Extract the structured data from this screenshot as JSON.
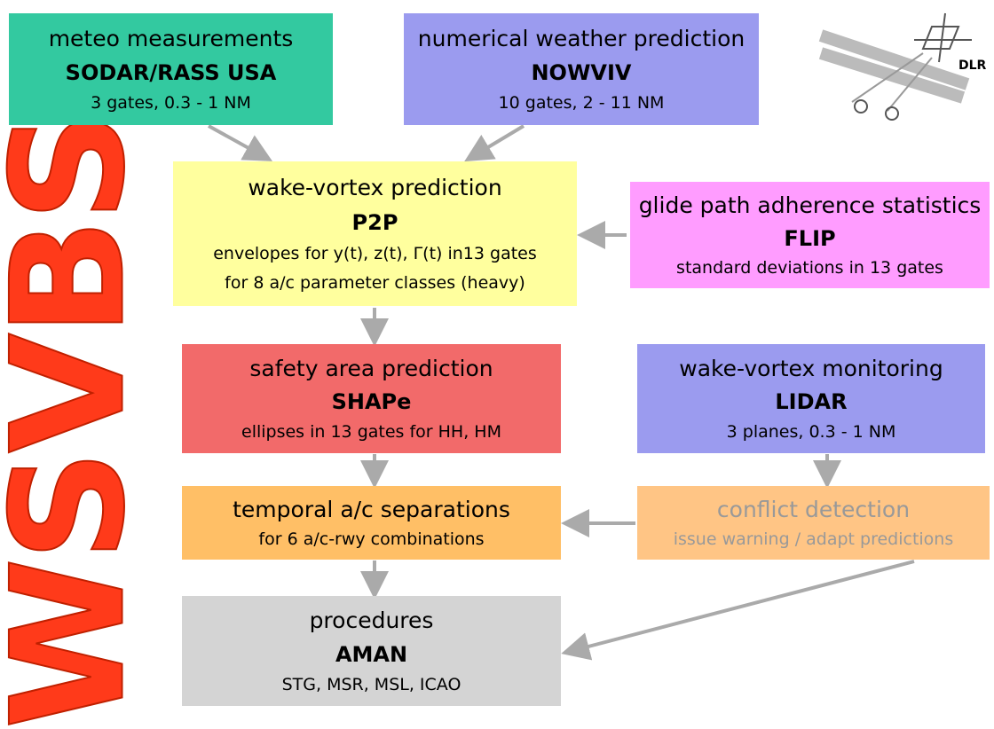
{
  "title": "WSVBS",
  "logo": "DLR",
  "boxes": [
    {
      "lines": [
        "meteo measurements",
        "SODAR/RASS USA",
        "3 gates, 0.3 - 1 NM"
      ]
    },
    {
      "lines": [
        "numerical weather prediction",
        "NOWVIV",
        "10 gates, 2 - 11 NM"
      ]
    },
    {
      "lines": [
        "wake-vortex prediction",
        "P2P",
        "envelopes for y(t), z(t), Γ(t) in13 gates",
        "for 8 a/c parameter classes (heavy)"
      ]
    },
    {
      "lines": [
        "glide path adherence statistics",
        "FLIP",
        "standard deviations in 13 gates"
      ]
    },
    {
      "lines": [
        "safety area prediction",
        "SHAPe",
        "ellipses in 13 gates for HH, HM"
      ]
    },
    {
      "lines": [
        "wake-vortex monitoring",
        "LIDAR",
        "3 planes, 0.3 - 1 NM"
      ]
    },
    {
      "lines": [
        "temporal a/c separations",
        "for 6 a/c-rwy combinations"
      ]
    },
    {
      "lines": [
        "conflict detection",
        "issue warning / adapt predictions"
      ]
    },
    {
      "lines": [
        "procedures",
        "AMAN",
        "STG, MSR, MSL, ICAO"
      ]
    }
  ]
}
